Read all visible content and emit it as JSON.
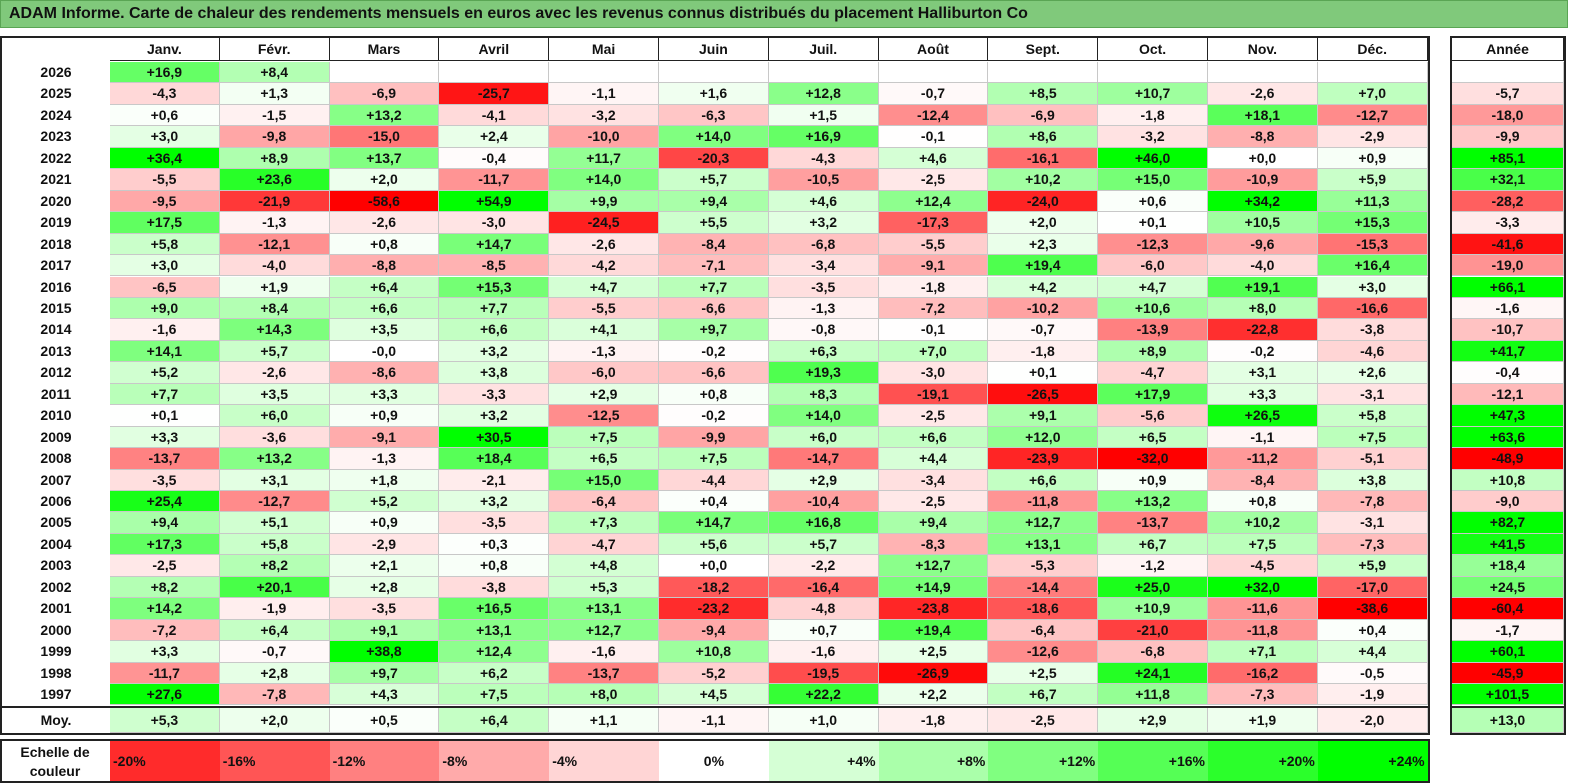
{
  "title": "ADAM Informe. Carte de chaleur des rendements mensuels en euros avec les revenus connus distribués du placement Halliburton Co",
  "chart_data": {
    "type": "heatmap",
    "title": "ADAM Informe. Carte de chaleur des rendements mensuels en euros avec les revenus connus distribués du placement Halliburton Co",
    "columns": [
      "Janv.",
      "Févr.",
      "Mars",
      "Avril",
      "Mai",
      "Juin",
      "Juil.",
      "Août",
      "Sept.",
      "Oct.",
      "Nov.",
      "Déc."
    ],
    "year_column_label": "Année",
    "rows": [
      {
        "year": "2026",
        "values": [
          "+16,9",
          "+8,4",
          "",
          "",
          "",
          "",
          "",
          "",
          "",
          "",
          "",
          ""
        ],
        "annual": ""
      },
      {
        "year": "2025",
        "values": [
          "-4,3",
          "+1,3",
          "-6,9",
          "-25,7",
          "-1,1",
          "+1,6",
          "+12,8",
          "-0,7",
          "+8,5",
          "+10,7",
          "-2,6",
          "+7,0"
        ],
        "annual": "-5,7"
      },
      {
        "year": "2024",
        "values": [
          "+0,6",
          "-1,5",
          "+13,2",
          "-4,1",
          "-3,2",
          "-6,3",
          "+1,5",
          "-12,4",
          "-6,9",
          "-1,8",
          "+18,1",
          "-12,7"
        ],
        "annual": "-18,0"
      },
      {
        "year": "2023",
        "values": [
          "+3,0",
          "-9,8",
          "-15,0",
          "+2,4",
          "-10,0",
          "+14,0",
          "+16,9",
          "-0,1",
          "+8,6",
          "-3,2",
          "-8,8",
          "-2,9"
        ],
        "annual": "-9,9"
      },
      {
        "year": "2022",
        "values": [
          "+36,4",
          "+8,9",
          "+13,7",
          "-0,4",
          "+11,7",
          "-20,3",
          "-4,3",
          "+4,6",
          "-16,1",
          "+46,0",
          "+0,0",
          "+0,9"
        ],
        "annual": "+85,1"
      },
      {
        "year": "2021",
        "values": [
          "-5,5",
          "+23,6",
          "+2,0",
          "-11,7",
          "+14,0",
          "+5,7",
          "-10,5",
          "-2,5",
          "+10,2",
          "+15,0",
          "-10,9",
          "+5,9"
        ],
        "annual": "+32,1"
      },
      {
        "year": "2020",
        "values": [
          "-9,5",
          "-21,9",
          "-58,6",
          "+54,9",
          "+9,9",
          "+9,4",
          "+4,6",
          "+12,4",
          "-24,0",
          "+0,6",
          "+34,2",
          "+11,3"
        ],
        "annual": "-28,2"
      },
      {
        "year": "2019",
        "values": [
          "+17,5",
          "-1,3",
          "-2,6",
          "-3,0",
          "-24,5",
          "+5,5",
          "+3,2",
          "-17,3",
          "+2,0",
          "+0,1",
          "+10,5",
          "+15,3"
        ],
        "annual": "-3,3"
      },
      {
        "year": "2018",
        "values": [
          "+5,8",
          "-12,1",
          "+0,8",
          "+14,7",
          "-2,6",
          "-8,4",
          "-6,8",
          "-5,5",
          "+2,3",
          "-12,3",
          "-9,6",
          "-15,3"
        ],
        "annual": "-41,6"
      },
      {
        "year": "2017",
        "values": [
          "+3,0",
          "-4,0",
          "-8,8",
          "-8,5",
          "-4,2",
          "-7,1",
          "-3,4",
          "-9,1",
          "+19,4",
          "-6,0",
          "-4,0",
          "+16,4"
        ],
        "annual": "-19,0"
      },
      {
        "year": "2016",
        "values": [
          "-6,5",
          "+1,9",
          "+6,4",
          "+15,3",
          "+4,7",
          "+7,7",
          "-3,5",
          "-1,8",
          "+4,2",
          "+4,7",
          "+19,1",
          "+3,0"
        ],
        "annual": "+66,1"
      },
      {
        "year": "2015",
        "values": [
          "+9,0",
          "+8,4",
          "+6,6",
          "+7,7",
          "-5,5",
          "-6,6",
          "-1,3",
          "-7,2",
          "-10,2",
          "+10,6",
          "+8,0",
          "-16,6"
        ],
        "annual": "-1,6"
      },
      {
        "year": "2014",
        "values": [
          "-1,6",
          "+14,3",
          "+3,5",
          "+6,6",
          "+4,1",
          "+9,7",
          "-0,8",
          "-0,1",
          "-0,7",
          "-13,9",
          "-22,8",
          "-3,8"
        ],
        "annual": "-10,7"
      },
      {
        "year": "2013",
        "values": [
          "+14,1",
          "+5,7",
          "-0,0",
          "+3,2",
          "-1,3",
          "-0,2",
          "+6,3",
          "+7,0",
          "-1,8",
          "+8,9",
          "-0,2",
          "-4,6"
        ],
        "annual": "+41,7"
      },
      {
        "year": "2012",
        "values": [
          "+5,2",
          "-2,6",
          "-8,6",
          "+3,8",
          "-6,0",
          "-6,6",
          "+19,3",
          "-3,0",
          "+0,1",
          "-4,7",
          "+3,1",
          "+2,6"
        ],
        "annual": "-0,4"
      },
      {
        "year": "2011",
        "values": [
          "+7,7",
          "+3,5",
          "+3,3",
          "-3,3",
          "+2,9",
          "+0,8",
          "+8,3",
          "-19,1",
          "-26,5",
          "+17,9",
          "+3,3",
          "-3,1"
        ],
        "annual": "-12,1"
      },
      {
        "year": "2010",
        "values": [
          "+0,1",
          "+6,0",
          "+0,9",
          "+3,2",
          "-12,5",
          "-0,2",
          "+14,0",
          "-2,5",
          "+9,1",
          "-5,6",
          "+26,5",
          "+5,8"
        ],
        "annual": "+47,3"
      },
      {
        "year": "2009",
        "values": [
          "+3,3",
          "-3,6",
          "-9,1",
          "+30,5",
          "+7,5",
          "-9,9",
          "+6,0",
          "+6,6",
          "+12,0",
          "+6,5",
          "-1,1",
          "+7,5"
        ],
        "annual": "+63,6"
      },
      {
        "year": "2008",
        "values": [
          "-13,7",
          "+13,2",
          "-1,3",
          "+18,4",
          "+6,5",
          "+7,5",
          "-14,7",
          "+4,4",
          "-23,9",
          "-32,0",
          "-11,2",
          "-5,1"
        ],
        "annual": "-48,9"
      },
      {
        "year": "2007",
        "values": [
          "-3,5",
          "+3,1",
          "+1,8",
          "-2,1",
          "+15,0",
          "-4,4",
          "+2,9",
          "-3,4",
          "+6,6",
          "+0,9",
          "-8,4",
          "+3,8"
        ],
        "annual": "+10,8"
      },
      {
        "year": "2006",
        "values": [
          "+25,4",
          "-12,7",
          "+5,2",
          "+3,2",
          "-6,4",
          "+0,4",
          "-10,4",
          "-2,5",
          "-11,8",
          "+13,2",
          "+0,8",
          "-7,8"
        ],
        "annual": "-9,0"
      },
      {
        "year": "2005",
        "values": [
          "+9,4",
          "+5,1",
          "+0,9",
          "-3,5",
          "+7,3",
          "+14,7",
          "+16,8",
          "+9,4",
          "+12,7",
          "-13,7",
          "+10,2",
          "-3,1"
        ],
        "annual": "+82,7"
      },
      {
        "year": "2004",
        "values": [
          "+17,3",
          "+5,8",
          "-2,9",
          "+0,3",
          "-4,7",
          "+5,6",
          "+5,7",
          "-8,3",
          "+13,1",
          "+6,7",
          "+7,5",
          "-7,3"
        ],
        "annual": "+41,5"
      },
      {
        "year": "2003",
        "values": [
          "-2,5",
          "+8,2",
          "+2,1",
          "+0,8",
          "+4,8",
          "+0,0",
          "-2,2",
          "+12,7",
          "-5,3",
          "-1,2",
          "-4,5",
          "+5,9"
        ],
        "annual": "+18,4"
      },
      {
        "year": "2002",
        "values": [
          "+8,2",
          "+20,1",
          "+2,8",
          "-3,8",
          "+5,3",
          "-18,2",
          "-16,4",
          "+14,9",
          "-14,4",
          "+25,0",
          "+32,0",
          "-17,0"
        ],
        "annual": "+24,5"
      },
      {
        "year": "2001",
        "values": [
          "+14,2",
          "-1,9",
          "-3,5",
          "+16,5",
          "+13,1",
          "-23,2",
          "-4,8",
          "-23,8",
          "-18,6",
          "+10,9",
          "-11,6",
          "-38,6"
        ],
        "annual": "-60,4"
      },
      {
        "year": "2000",
        "values": [
          "-7,2",
          "+6,4",
          "+9,1",
          "+13,1",
          "+12,7",
          "-9,4",
          "+0,7",
          "+19,4",
          "-6,4",
          "-21,0",
          "-11,8",
          "+0,4"
        ],
        "annual": "-1,7"
      },
      {
        "year": "1999",
        "values": [
          "+3,3",
          "-0,7",
          "+38,8",
          "+12,4",
          "-1,6",
          "+10,8",
          "-1,6",
          "+2,5",
          "-12,6",
          "-6,8",
          "+7,1",
          "+4,4"
        ],
        "annual": "+60,1"
      },
      {
        "year": "1998",
        "values": [
          "-11,7",
          "+2,8",
          "+9,7",
          "+6,2",
          "-13,7",
          "-5,2",
          "-19,5",
          "-26,9",
          "+2,5",
          "+24,1",
          "-16,2",
          "-0,5"
        ],
        "annual": "-45,9"
      },
      {
        "year": "1997",
        "values": [
          "+27,6",
          "-7,8",
          "+4,3",
          "+7,5",
          "+8,0",
          "+4,5",
          "+22,2",
          "+2,2",
          "+6,7",
          "+11,8",
          "-7,3",
          "-1,9"
        ],
        "annual": "+101,5"
      }
    ],
    "average_row": {
      "label": "Moy.",
      "values": [
        "+5,3",
        "+2,0",
        "+0,5",
        "+6,4",
        "+1,1",
        "-1,1",
        "+1,0",
        "-1,8",
        "-2,5",
        "+2,9",
        "+1,9",
        "-2,0"
      ],
      "annual": "+13,0"
    },
    "color_scale": {
      "caption": "Echelle de couleur",
      "stops": [
        "-20%",
        "-16%",
        "-12%",
        "-8%",
        "-4%",
        "0%",
        "+4%",
        "+8%",
        "+12%",
        "+16%",
        "+20%",
        "+24%"
      ],
      "stop_values": [
        -20,
        -16,
        -12,
        -8,
        -4,
        0,
        4,
        8,
        12,
        16,
        20,
        24
      ],
      "negative_color": "#ff0000",
      "positive_color": "#00ff00",
      "neutral_color": "#ffffff"
    }
  }
}
